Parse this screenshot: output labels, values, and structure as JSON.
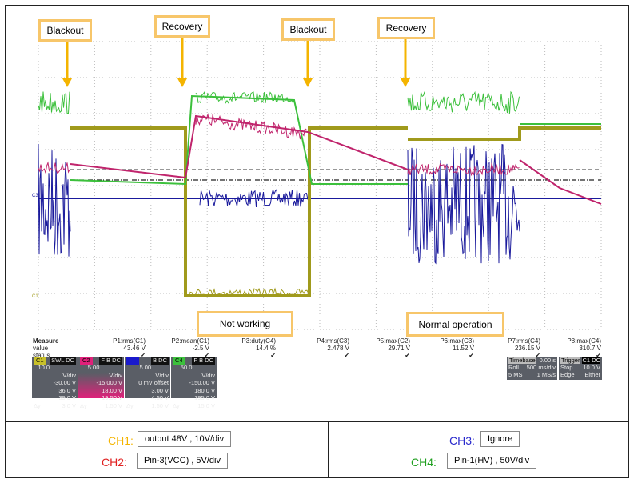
{
  "annotations": {
    "blackout1": "Blackout",
    "recovery1": "Recovery",
    "blackout2": "Blackout",
    "recovery2": "Recovery",
    "not_working": "Not working",
    "normal_operation": "Normal operation"
  },
  "colors": {
    "ch1": "#a09a1c",
    "ch2": "#c0246c",
    "ch3": "#1a1a9c",
    "ch4": "#3cc03c",
    "annotation_border": "#f7c66a",
    "arrow": "#f4b400"
  },
  "measure": {
    "header": "Measure",
    "value_label": "value",
    "status_label": "status",
    "params": [
      {
        "name": "P1:rms(C1)",
        "value": "43.46 V",
        "status": "✔"
      },
      {
        "name": "P2:mean(C1)",
        "value": "-2.5 V",
        "status": "✔"
      },
      {
        "name": "P3:duty(C4)",
        "value": "14.4 %",
        "status": "✔"
      },
      {
        "name": "P4:rms(C3)",
        "value": "2.478 V",
        "status": "✔"
      },
      {
        "name": "P5:max(C2)",
        "value": "29.71 V",
        "status": "✔"
      },
      {
        "name": "P6:max(C3)",
        "value": "11.52 V",
        "status": "✔"
      },
      {
        "name": "P7:rms(C4)",
        "value": "236.15 V",
        "status": "✔"
      },
      {
        "name": "P8:max(C4)",
        "value": "310.7 V",
        "status": "✔"
      }
    ]
  },
  "channels": [
    {
      "id": "C1",
      "tag": "SWL DC",
      "scale": "10.0 V/div",
      "offset": "-30.00 V",
      "c1": "36.0 V",
      "c2": "39.0 V",
      "dy_label": "Δy",
      "dy": "3.0 V"
    },
    {
      "id": "C2",
      "tag": "F B DC",
      "scale": "5.00 V/div",
      "offset": "-15.000 V",
      "c1": "18.00 V",
      "c2": "19.50 V",
      "dy_label": "Δy",
      "dy": "1.50 V"
    },
    {
      "id": "C3",
      "tag": "B DC",
      "scale": "5.00 V/div",
      "offset": "0 mV offset",
      "c1": "3.00 V",
      "c2": "4.50 V",
      "dy_label": "Δy",
      "dy": "1.50 V"
    },
    {
      "id": "C4",
      "tag": "F B DC",
      "scale": "50.0 V/div",
      "offset": "-150.00 V",
      "c1": "180.0 V",
      "c2": "195.0 V",
      "dy_label": "Δy",
      "dy": "15.0 V"
    }
  ],
  "timebase": {
    "label": "Timebase",
    "value": "0.00 s",
    "mode": "Roll",
    "scale": "500 ms/div",
    "samples": "5 MS",
    "rate": "1 MS/s"
  },
  "trigger": {
    "label": "Trigger",
    "tag": "C1 DC",
    "mode": "Stop",
    "level": "10.0 V",
    "type": "Edge",
    "slope": "Either"
  },
  "markers": {
    "c3": "C3",
    "c1": "C1"
  },
  "legend": {
    "ch1": {
      "label": "CH1:",
      "desc": "output 48V , 10V/div"
    },
    "ch2": {
      "label": "CH2:",
      "desc": "Pin-3(VCC) , 5V/div"
    },
    "ch3": {
      "label": "CH3:",
      "desc": "Ignore"
    },
    "ch4": {
      "label": "CH4:",
      "desc": "Pin-1(HV) , 50V/div"
    }
  }
}
